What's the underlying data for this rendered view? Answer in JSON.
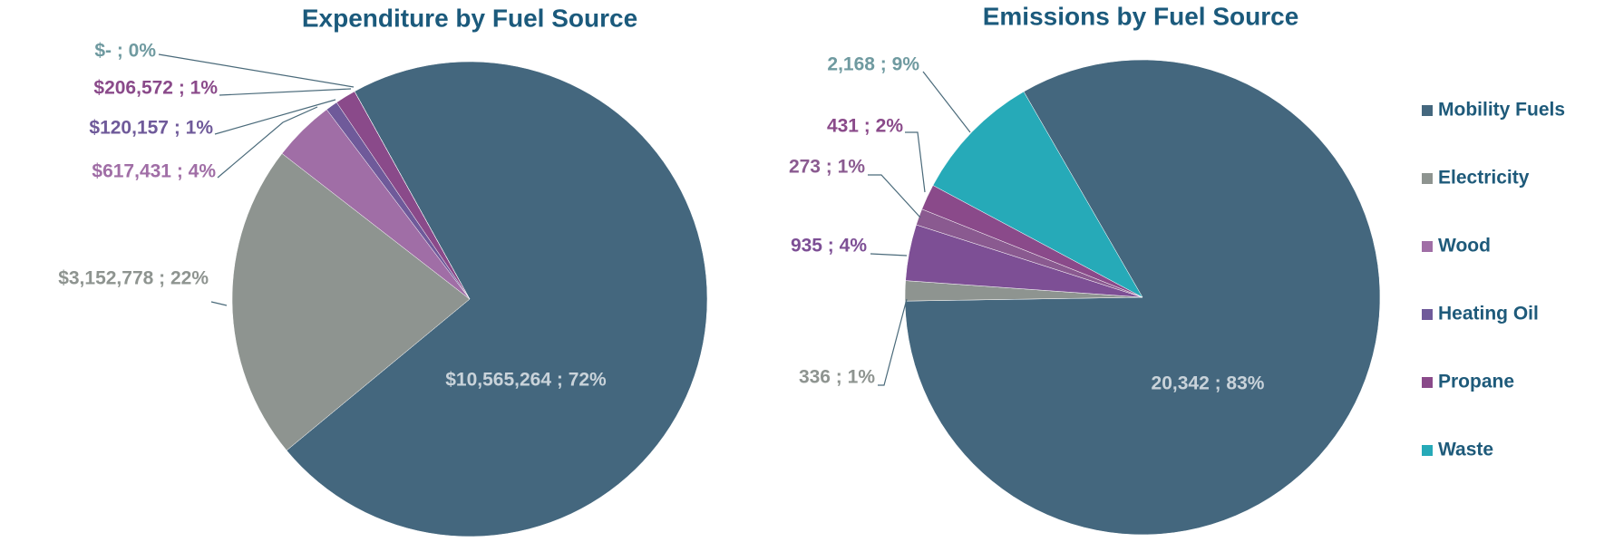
{
  "chart_data": [
    {
      "type": "pie",
      "title": "Expenditure by Fuel Source",
      "categories": [
        "Mobility Fuels",
        "Electricity",
        "Wood",
        "Heating Oil",
        "Propane",
        "Waste"
      ],
      "values": [
        10565264,
        3152778,
        617431,
        120157,
        206572,
        0
      ],
      "value_labels": [
        "$10,565,264 ; 72%",
        "$3,152,778 ; 22%",
        "$617,431 ; 4%",
        "$120,157 ; 1%",
        "$206,572 ; 1%",
        "$-  ; 0%"
      ],
      "colors": [
        "#44677e",
        "#8e9490",
        "#a06ea6",
        "#6f5a9a",
        "#8a4a8a",
        "#26aab8"
      ]
    },
    {
      "type": "pie",
      "title": "Emissions by Fuel Source",
      "categories": [
        "Mobility Fuels",
        "Electricity",
        "Wood",
        "Heating Oil",
        "Propane",
        "Waste"
      ],
      "values": [
        20342,
        336,
        935,
        273,
        431,
        2168
      ],
      "value_labels": [
        "20,342 ; 83%",
        "336 ; 1%",
        "935 ; 4%",
        "273 ; 1%",
        "431 ; 2%",
        "2,168 ; 9%"
      ],
      "colors": [
        "#44677e",
        "#8e9490",
        "#7d4f95",
        "#8a5a90",
        "#8a4a8a",
        "#26aab8"
      ]
    }
  ]
}
